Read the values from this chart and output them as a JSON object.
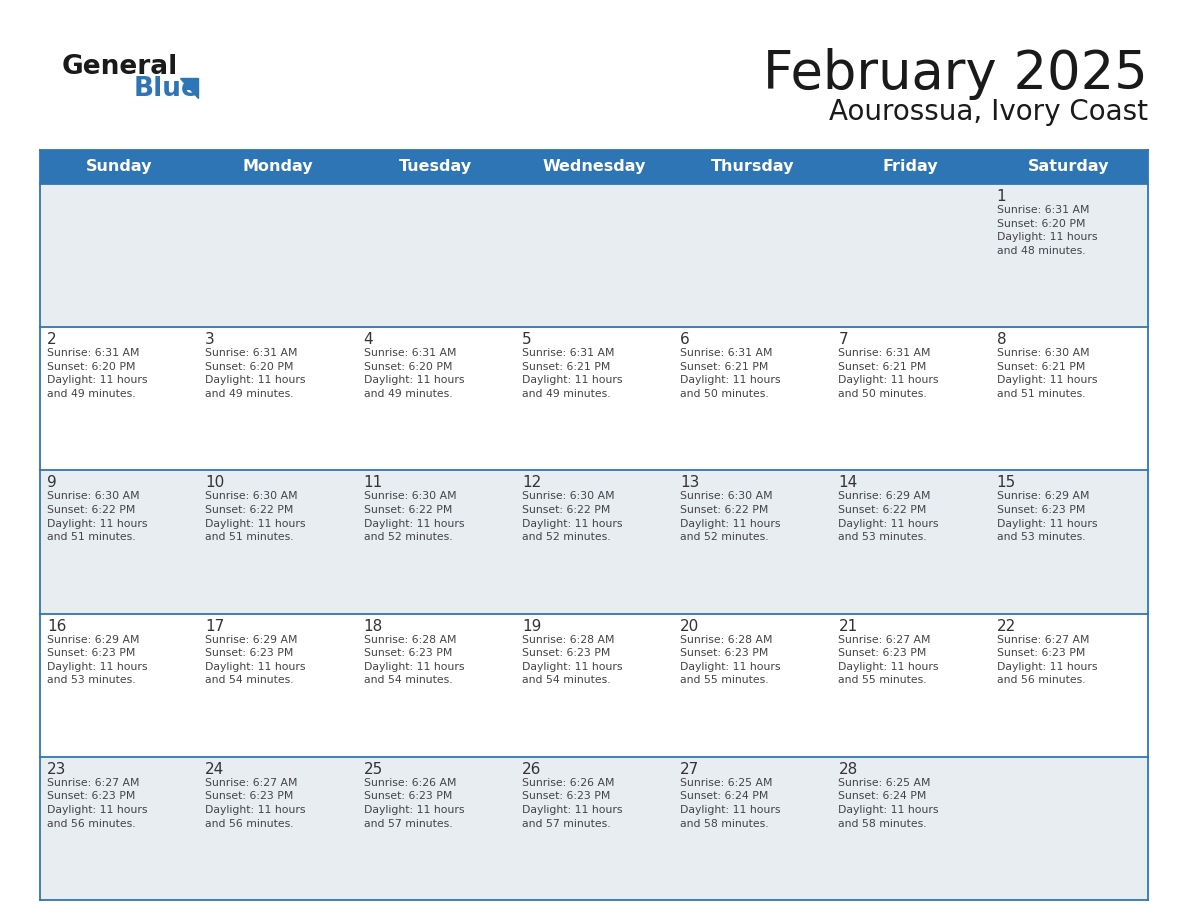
{
  "title": "February 2025",
  "subtitle": "Aourossua, Ivory Coast",
  "header_color": "#2e75b6",
  "header_text_color": "#ffffff",
  "cell_bg_white": "#ffffff",
  "cell_bg_gray": "#e8edf2",
  "line_color": "#2e75b6",
  "text_color": "#333333",
  "days_of_week": [
    "Sunday",
    "Monday",
    "Tuesday",
    "Wednesday",
    "Thursday",
    "Friday",
    "Saturday"
  ],
  "calendar_data": [
    [
      null,
      null,
      null,
      null,
      null,
      null,
      {
        "day": "1",
        "sunrise": "6:31 AM",
        "sunset": "6:20 PM",
        "daylight": "11 hours\nand 48 minutes."
      }
    ],
    [
      {
        "day": "2",
        "sunrise": "6:31 AM",
        "sunset": "6:20 PM",
        "daylight": "11 hours\nand 49 minutes."
      },
      {
        "day": "3",
        "sunrise": "6:31 AM",
        "sunset": "6:20 PM",
        "daylight": "11 hours\nand 49 minutes."
      },
      {
        "day": "4",
        "sunrise": "6:31 AM",
        "sunset": "6:20 PM",
        "daylight": "11 hours\nand 49 minutes."
      },
      {
        "day": "5",
        "sunrise": "6:31 AM",
        "sunset": "6:21 PM",
        "daylight": "11 hours\nand 49 minutes."
      },
      {
        "day": "6",
        "sunrise": "6:31 AM",
        "sunset": "6:21 PM",
        "daylight": "11 hours\nand 50 minutes."
      },
      {
        "day": "7",
        "sunrise": "6:31 AM",
        "sunset": "6:21 PM",
        "daylight": "11 hours\nand 50 minutes."
      },
      {
        "day": "8",
        "sunrise": "6:30 AM",
        "sunset": "6:21 PM",
        "daylight": "11 hours\nand 51 minutes."
      }
    ],
    [
      {
        "day": "9",
        "sunrise": "6:30 AM",
        "sunset": "6:22 PM",
        "daylight": "11 hours\nand 51 minutes."
      },
      {
        "day": "10",
        "sunrise": "6:30 AM",
        "sunset": "6:22 PM",
        "daylight": "11 hours\nand 51 minutes."
      },
      {
        "day": "11",
        "sunrise": "6:30 AM",
        "sunset": "6:22 PM",
        "daylight": "11 hours\nand 52 minutes."
      },
      {
        "day": "12",
        "sunrise": "6:30 AM",
        "sunset": "6:22 PM",
        "daylight": "11 hours\nand 52 minutes."
      },
      {
        "day": "13",
        "sunrise": "6:30 AM",
        "sunset": "6:22 PM",
        "daylight": "11 hours\nand 52 minutes."
      },
      {
        "day": "14",
        "sunrise": "6:29 AM",
        "sunset": "6:22 PM",
        "daylight": "11 hours\nand 53 minutes."
      },
      {
        "day": "15",
        "sunrise": "6:29 AM",
        "sunset": "6:23 PM",
        "daylight": "11 hours\nand 53 minutes."
      }
    ],
    [
      {
        "day": "16",
        "sunrise": "6:29 AM",
        "sunset": "6:23 PM",
        "daylight": "11 hours\nand 53 minutes."
      },
      {
        "day": "17",
        "sunrise": "6:29 AM",
        "sunset": "6:23 PM",
        "daylight": "11 hours\nand 54 minutes."
      },
      {
        "day": "18",
        "sunrise": "6:28 AM",
        "sunset": "6:23 PM",
        "daylight": "11 hours\nand 54 minutes."
      },
      {
        "day": "19",
        "sunrise": "6:28 AM",
        "sunset": "6:23 PM",
        "daylight": "11 hours\nand 54 minutes."
      },
      {
        "day": "20",
        "sunrise": "6:28 AM",
        "sunset": "6:23 PM",
        "daylight": "11 hours\nand 55 minutes."
      },
      {
        "day": "21",
        "sunrise": "6:27 AM",
        "sunset": "6:23 PM",
        "daylight": "11 hours\nand 55 minutes."
      },
      {
        "day": "22",
        "sunrise": "6:27 AM",
        "sunset": "6:23 PM",
        "daylight": "11 hours\nand 56 minutes."
      }
    ],
    [
      {
        "day": "23",
        "sunrise": "6:27 AM",
        "sunset": "6:23 PM",
        "daylight": "11 hours\nand 56 minutes."
      },
      {
        "day": "24",
        "sunrise": "6:27 AM",
        "sunset": "6:23 PM",
        "daylight": "11 hours\nand 56 minutes."
      },
      {
        "day": "25",
        "sunrise": "6:26 AM",
        "sunset": "6:23 PM",
        "daylight": "11 hours\nand 57 minutes."
      },
      {
        "day": "26",
        "sunrise": "6:26 AM",
        "sunset": "6:23 PM",
        "daylight": "11 hours\nand 57 minutes."
      },
      {
        "day": "27",
        "sunrise": "6:25 AM",
        "sunset": "6:24 PM",
        "daylight": "11 hours\nand 58 minutes."
      },
      {
        "day": "28",
        "sunrise": "6:25 AM",
        "sunset": "6:24 PM",
        "daylight": "11 hours\nand 58 minutes."
      },
      null
    ]
  ]
}
